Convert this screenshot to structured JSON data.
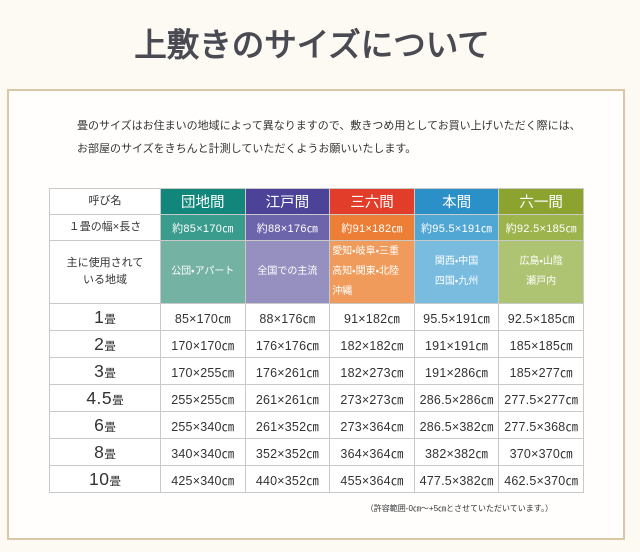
{
  "page": {
    "title": "上敷きのサイズについて",
    "intro_lines": [
      "畳のサイズはお住まいの地域によって異なりますので、敷きつめ用としてお買い上げいただく際には、",
      "お部屋のサイズをきちんと計測していただくようお願いいたします。"
    ],
    "footnote": "（許容範囲-0㎝〜+5㎝とさせていただいています。）"
  },
  "colors": {
    "page_background": "#fdf9f3",
    "box_border": "#d9c7a6",
    "grid_border": "#c9c9c9",
    "text": "#333333",
    "title": "#4a4a52"
  },
  "table": {
    "corner_label": "呼び名",
    "width_row_label": "１畳の幅×長さ",
    "region_row_label_lines": [
      "主に使用されて",
      "いる地域"
    ],
    "columns": [
      {
        "name": "団地間",
        "width": "約85×170㎝",
        "region_lines": [
          "公団・アパート"
        ],
        "colors": {
          "header": "#12867b",
          "width": "#3a9c8d",
          "region": "#74b2a3"
        }
      },
      {
        "name": "江戸間",
        "width": "約88×176㎝",
        "region_lines": [
          "全国での主流"
        ],
        "colors": {
          "header": "#4c4399",
          "width": "#6d65ab",
          "region": "#9690c0"
        }
      },
      {
        "name": "三六間",
        "width": "約91×182㎝",
        "region_lines": [
          "愛知・岐阜・三重",
          "高知・関東・北陸",
          "沖縄"
        ],
        "colors": {
          "header": "#e23c2b",
          "width": "#ec7e36",
          "region": "#f09b5b"
        }
      },
      {
        "name": "本間",
        "width": "約95.5×191㎝",
        "region_lines": [
          "関西・中国",
          "四国・九州"
        ],
        "colors": {
          "header": "#2b90c8",
          "width": "#51a7d4",
          "region": "#79bcdf"
        }
      },
      {
        "name": "六一間",
        "width": "約92.5×185㎝",
        "region_lines": [
          "広島・山陰",
          "瀬戸内"
        ],
        "colors": {
          "header": "#8ca32f",
          "width": "#9db44c",
          "region": "#afc472"
        }
      }
    ],
    "data_rows": [
      {
        "label": "1",
        "unit": "畳",
        "values": [
          "85×170㎝",
          "88×176㎝",
          "91×182㎝",
          "95.5×191㎝",
          "92.5×185㎝"
        ]
      },
      {
        "label": "2",
        "unit": "畳",
        "values": [
          "170×170㎝",
          "176×176㎝",
          "182×182㎝",
          "191×191㎝",
          "185×185㎝"
        ]
      },
      {
        "label": "3",
        "unit": "畳",
        "values": [
          "170×255㎝",
          "176×261㎝",
          "182×273㎝",
          "191×286㎝",
          "185×277㎝"
        ]
      },
      {
        "label": "4.5",
        "unit": "畳",
        "values": [
          "255×255㎝",
          "261×261㎝",
          "273×273㎝",
          "286.5×286㎝",
          "277.5×277㎝"
        ]
      },
      {
        "label": "6",
        "unit": "畳",
        "values": [
          "255×340㎝",
          "261×352㎝",
          "273×364㎝",
          "286.5×382㎝",
          "277.5×368㎝"
        ]
      },
      {
        "label": "8",
        "unit": "畳",
        "values": [
          "340×340㎝",
          "352×352㎝",
          "364×364㎝",
          "382×382㎝",
          "370×370㎝"
        ]
      },
      {
        "label": "10",
        "unit": "畳",
        "values": [
          "425×340㎝",
          "440×352㎝",
          "455×364㎝",
          "477.5×382㎝",
          "462.5×370㎝"
        ]
      }
    ]
  }
}
